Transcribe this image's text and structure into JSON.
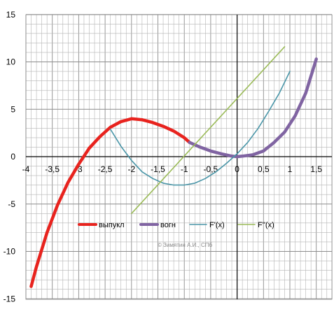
{
  "chart_data": {
    "type": "line",
    "title": "",
    "xlabel": "",
    "ylabel": "",
    "xlim": [
      -4,
      1.6
    ],
    "ylim": [
      -15,
      15
    ],
    "grid": true,
    "legend_placement": "bottom-center",
    "x_ticks": [
      -4,
      -3.5,
      -3,
      -2.5,
      -2,
      -1.5,
      -1,
      -0.5,
      0,
      0.5,
      1,
      1.5
    ],
    "x_tick_labels": [
      "-4",
      "-3,5",
      "-3",
      "-2,5",
      "-2",
      "-1,5",
      "-1",
      "-0,5",
      "0",
      "0,5",
      "1",
      "1,5"
    ],
    "y_ticks": [
      -15,
      -10,
      -5,
      0,
      5,
      10,
      15
    ],
    "y_tick_labels": [
      "-15",
      "-10",
      "-5",
      "0",
      "5",
      "10",
      "15"
    ],
    "series": [
      {
        "name": "выпукл",
        "color": "#e8231e",
        "x": [
          -3.9,
          -3.8,
          -3.6,
          -3.4,
          -3.2,
          -3.0,
          -2.8,
          -2.6,
          -2.4,
          -2.2,
          -2.0,
          -1.8,
          -1.6,
          -1.4,
          -1.2,
          -1.0,
          -0.9
        ],
        "y": [
          -13.7,
          -11.6,
          -8.0,
          -5.1,
          -2.7,
          -0.8,
          0.9,
          2.1,
          3.1,
          3.7,
          4.0,
          3.9,
          3.6,
          3.2,
          2.7,
          2.0,
          1.5
        ]
      },
      {
        "name": "вогн",
        "color": "#8064a2",
        "x": [
          -0.9,
          -0.7,
          -0.5,
          -0.3,
          -0.1,
          0.0,
          0.1,
          0.3,
          0.5,
          0.7,
          0.9,
          1.1,
          1.3,
          1.5
        ],
        "y": [
          1.5,
          1.0,
          0.6,
          0.3,
          0.05,
          0.0,
          0.05,
          0.2,
          0.6,
          1.5,
          2.6,
          4.3,
          6.7,
          10.3
        ]
      },
      {
        "name": "F'(x)",
        "color": "#4a96a8",
        "x": [
          -2.4,
          -2.2,
          -2.0,
          -1.8,
          -1.6,
          -1.4,
          -1.2,
          -1.0,
          -0.8,
          -0.6,
          -0.4,
          -0.2,
          0.0,
          0.2,
          0.4,
          0.6,
          0.8,
          1.0
        ],
        "y": [
          2.9,
          1.1,
          -0.4,
          -1.6,
          -2.3,
          -2.8,
          -3.0,
          -3.0,
          -2.8,
          -2.3,
          -1.6,
          -0.7,
          0.3,
          1.5,
          3.0,
          4.8,
          6.7,
          9.0
        ]
      },
      {
        "name": "F''(x)",
        "color": "#9bbb59",
        "x": [
          -2.0,
          0.9
        ],
        "y": [
          -6.0,
          11.6
        ]
      }
    ]
  },
  "watermark": "© Зимятин А.И., СПб"
}
